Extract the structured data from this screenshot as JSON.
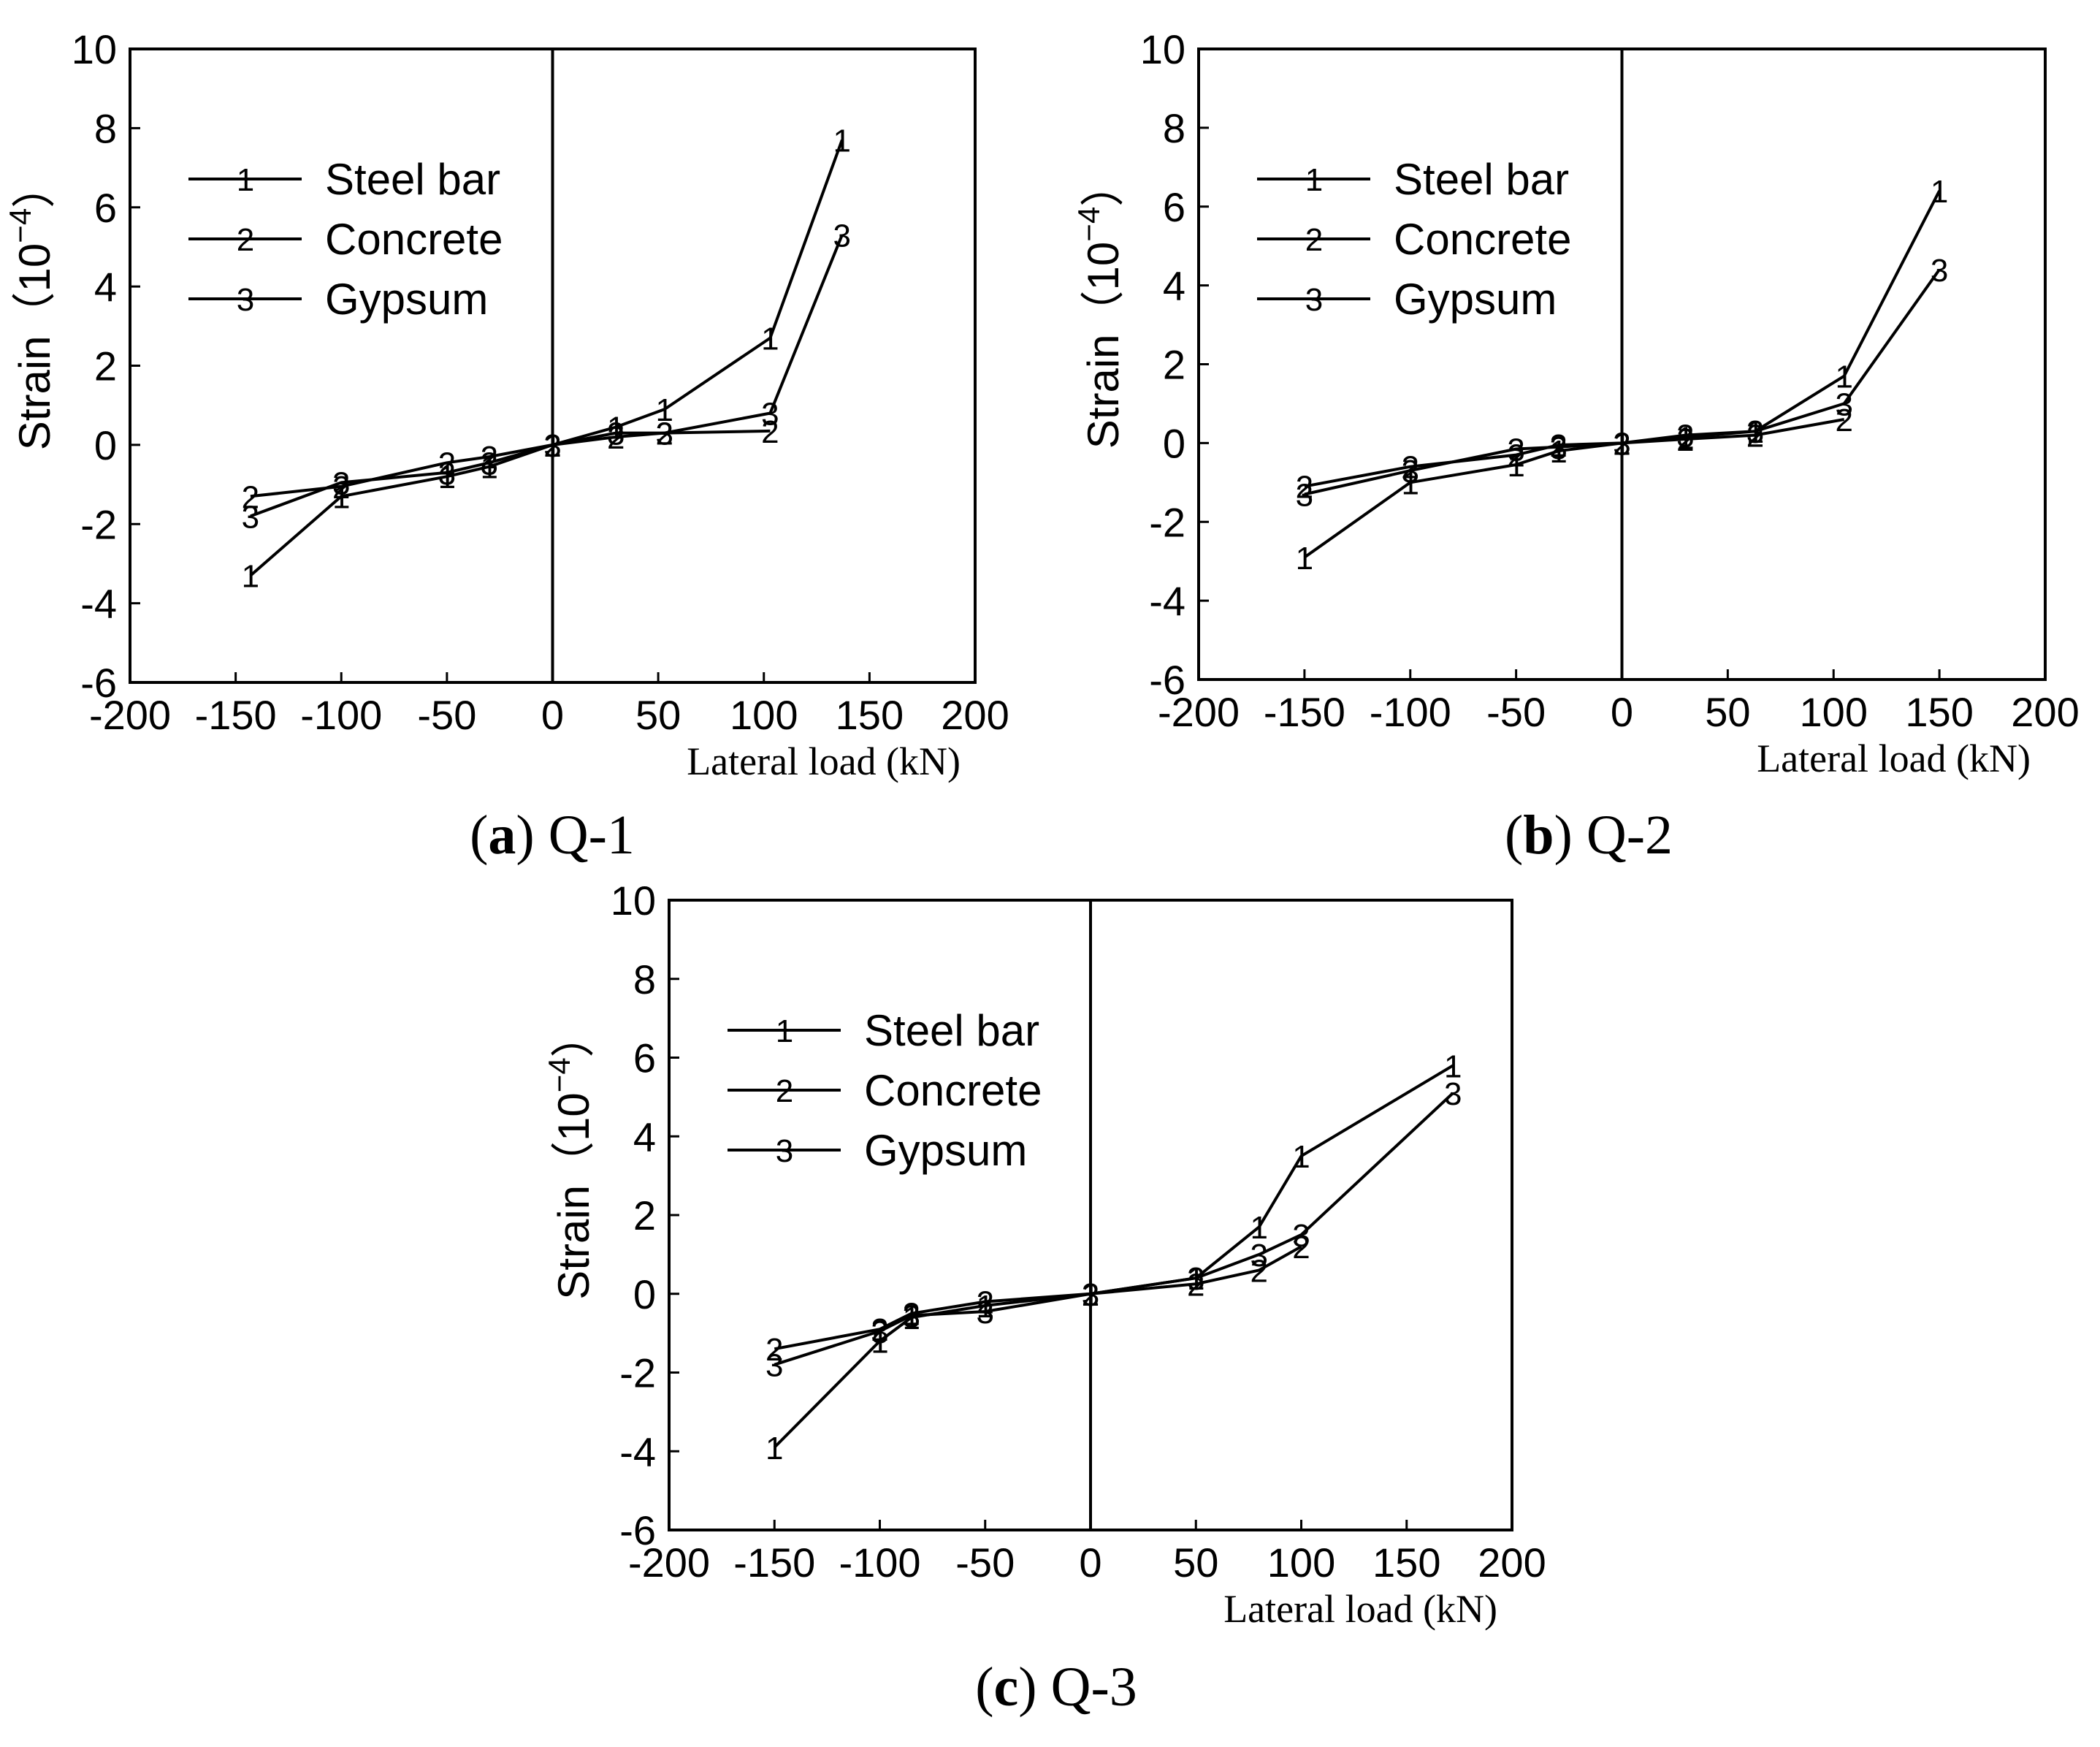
{
  "chart_data": [
    {
      "type": "line",
      "id": "a",
      "caption_letter": "a",
      "caption_name": " Q-1",
      "caption_open": "(",
      "caption_close": ")",
      "ylabel": "Strain（10",
      "ylabel_exp": "−4",
      "ylabel_close": "）",
      "xlabel": "Lateral load (kN)",
      "xlim": [
        -200,
        200
      ],
      "ylim": [
        -6,
        10
      ],
      "xticks": [
        -200,
        -150,
        -100,
        -50,
        0,
        50,
        100,
        150,
        200
      ],
      "yticks": [
        -6,
        -4,
        -2,
        0,
        2,
        4,
        6,
        8,
        10
      ],
      "xtick_labels": [
        "-200",
        "-150",
        "-100",
        "-50",
        "0",
        "50",
        "100",
        "150",
        "200"
      ],
      "ytick_labels": [
        "-6",
        "-4",
        "-2",
        "0",
        "2",
        "4",
        "6",
        "8",
        "10"
      ],
      "legend_position": "top-left",
      "series": [
        {
          "name": "Steel bar",
          "marker": "1",
          "points": [
            [
              -143,
              -3.3
            ],
            [
              -100,
              -1.3
            ],
            [
              -50,
              -0.8
            ],
            [
              -30,
              -0.55
            ],
            [
              0,
              0
            ],
            [
              30,
              0.45
            ],
            [
              53,
              0.9
            ],
            [
              103,
              2.7
            ],
            [
              137,
              7.7
            ]
          ]
        },
        {
          "name": "Concrete",
          "marker": "2",
          "points": [
            [
              -143,
              -1.3
            ],
            [
              -100,
              -1.05
            ],
            [
              -50,
              -0.45
            ],
            [
              -30,
              -0.3
            ],
            [
              0,
              0
            ],
            [
              30,
              0.2
            ],
            [
              53,
              0.3
            ],
            [
              103,
              0.35
            ]
          ]
        },
        {
          "name": "Gypsum",
          "marker": "3",
          "points": [
            [
              -143,
              -1.8
            ],
            [
              -100,
              -0.95
            ],
            [
              -50,
              -0.7
            ],
            [
              -30,
              -0.45
            ],
            [
              0,
              0
            ],
            [
              30,
              0.3
            ],
            [
              53,
              0.3
            ],
            [
              103,
              0.8
            ],
            [
              137,
              5.3
            ]
          ]
        }
      ]
    },
    {
      "type": "line",
      "id": "b",
      "caption_letter": "b",
      "caption_name": " Q-2",
      "caption_open": "(",
      "caption_close": ")",
      "ylabel": "Strain（10",
      "ylabel_exp": "−4",
      "ylabel_close": "）",
      "xlabel": "Lateral load (kN)",
      "xlim": [
        -200,
        200
      ],
      "ylim": [
        -6,
        10
      ],
      "xticks": [
        -200,
        -150,
        -100,
        -50,
        0,
        50,
        100,
        150,
        200
      ],
      "yticks": [
        -6,
        -4,
        -2,
        0,
        2,
        4,
        6,
        8,
        10
      ],
      "xtick_labels": [
        "-200",
        "-150",
        "-100",
        "-50",
        "0",
        "50",
        "100",
        "150",
        "200"
      ],
      "ytick_labels": [
        "-6",
        "-4",
        "-2",
        "0",
        "2",
        "4",
        "6",
        "8",
        "10"
      ],
      "legend_position": "top-left",
      "series": [
        {
          "name": "Steel bar",
          "marker": "1",
          "points": [
            [
              -150,
              -2.9
            ],
            [
              -100,
              -1.0
            ],
            [
              -50,
              -0.55
            ],
            [
              -30,
              -0.2
            ],
            [
              0,
              0
            ],
            [
              30,
              0.15
            ],
            [
              63,
              0.3
            ],
            [
              105,
              1.7
            ],
            [
              150,
              6.4
            ]
          ]
        },
        {
          "name": "Concrete",
          "marker": "2",
          "points": [
            [
              -150,
              -1.1
            ],
            [
              -100,
              -0.6
            ],
            [
              -50,
              -0.3
            ],
            [
              -30,
              -0.05
            ],
            [
              0,
              0
            ],
            [
              30,
              0.1
            ],
            [
              63,
              0.2
            ],
            [
              105,
              0.6
            ]
          ]
        },
        {
          "name": "Gypsum",
          "marker": "3",
          "points": [
            [
              -150,
              -1.3
            ],
            [
              -100,
              -0.7
            ],
            [
              -50,
              -0.15
            ],
            [
              -30,
              -0.1
            ],
            [
              0,
              0
            ],
            [
              30,
              0.2
            ],
            [
              63,
              0.3
            ],
            [
              105,
              1.0
            ],
            [
              150,
              4.4
            ]
          ]
        }
      ]
    },
    {
      "type": "line",
      "id": "c",
      "caption_letter": "c",
      "caption_name": " Q-3",
      "caption_open": "(",
      "caption_close": ")",
      "ylabel": "Strain（10",
      "ylabel_exp": "−4",
      "ylabel_close": "）",
      "xlabel": "Lateral load (kN)",
      "xlim": [
        -200,
        200
      ],
      "ylim": [
        -6,
        10
      ],
      "xticks": [
        -200,
        -150,
        -100,
        -50,
        0,
        50,
        100,
        150,
        200
      ],
      "yticks": [
        -6,
        -4,
        -2,
        0,
        2,
        4,
        6,
        8,
        10
      ],
      "xtick_labels": [
        "-200",
        "-150",
        "-100",
        "-50",
        "0",
        "50",
        "100",
        "150",
        "200"
      ],
      "ytick_labels": [
        "-6",
        "-4",
        "-2",
        "0",
        "2",
        "4",
        "6",
        "8",
        "10"
      ],
      "legend_position": "top-left",
      "series": [
        {
          "name": "Steel bar",
          "marker": "1",
          "points": [
            [
              -150,
              -3.9
            ],
            [
              -100,
              -1.2
            ],
            [
              -85,
              -0.6
            ],
            [
              -50,
              -0.3
            ],
            [
              0,
              0
            ],
            [
              50,
              0.4
            ],
            [
              80,
              1.7
            ],
            [
              100,
              3.5
            ],
            [
              172,
              5.8
            ]
          ]
        },
        {
          "name": "Concrete",
          "marker": "2",
          "points": [
            [
              -150,
              -1.4
            ],
            [
              -100,
              -0.9
            ],
            [
              -85,
              -0.5
            ],
            [
              -50,
              -0.2
            ],
            [
              0,
              0
            ],
            [
              50,
              0.25
            ],
            [
              80,
              0.6
            ],
            [
              100,
              1.2
            ]
          ]
        },
        {
          "name": "Gypsum",
          "marker": "3",
          "points": [
            [
              -150,
              -1.8
            ],
            [
              -100,
              -0.95
            ],
            [
              -85,
              -0.55
            ],
            [
              -50,
              -0.45
            ],
            [
              0,
              0
            ],
            [
              50,
              0.4
            ],
            [
              80,
              1.0
            ],
            [
              100,
              1.5
            ],
            [
              172,
              5.1
            ]
          ]
        }
      ]
    }
  ]
}
